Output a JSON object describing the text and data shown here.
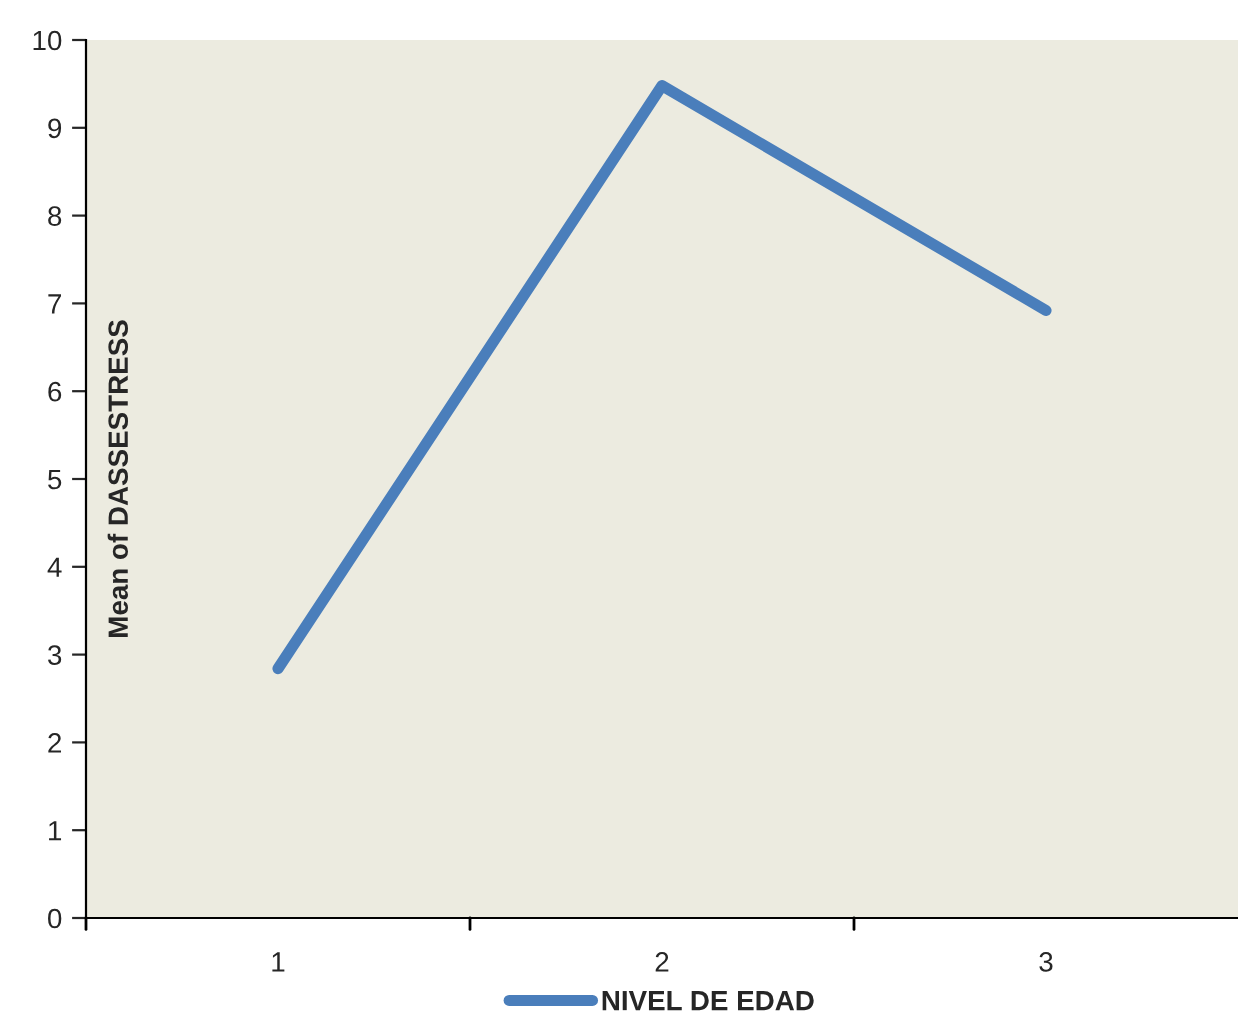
{
  "chart_data": {
    "type": "line",
    "ylabel": "Mean of DASSESTRESS",
    "categories": [
      "1",
      "2",
      "3"
    ],
    "series": [
      {
        "name": "NIVEL DE EDAD",
        "color": "#4a7ebb",
        "values": [
          2.84,
          9.48,
          6.92
        ]
      }
    ],
    "ylim": [
      0,
      10
    ],
    "yticks": [
      0,
      1,
      2,
      3,
      4,
      5,
      6,
      7,
      8,
      9,
      10
    ],
    "grid": false,
    "legend": "bottom",
    "line_style": "solid",
    "marker": "none"
  }
}
